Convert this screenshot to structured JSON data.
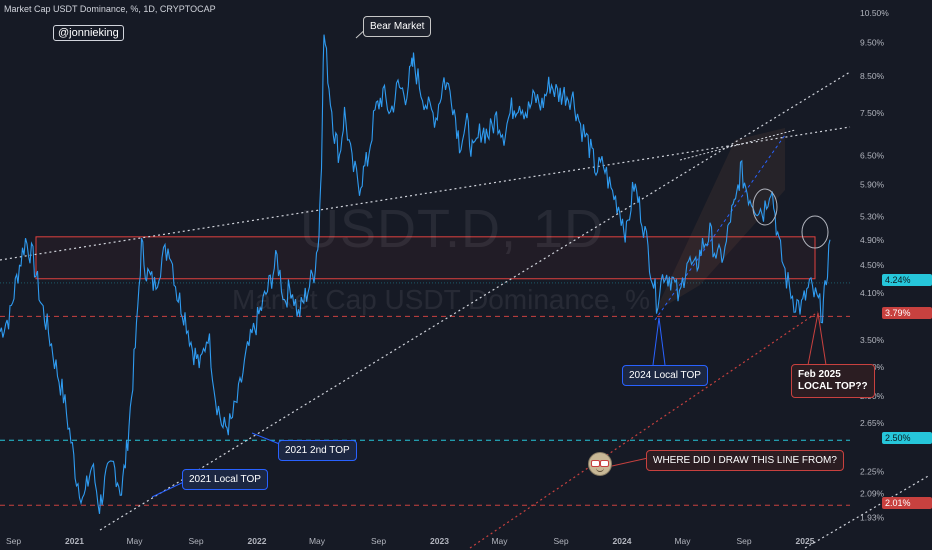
{
  "header": {
    "title": "Market Cap USDT Dominance, %, 1D, CRYPTOCAP",
    "handle": "@jonnieking"
  },
  "watermark": {
    "symbol": "USDT.D, 1D",
    "name": "Market Cap USDT Dominance, %"
  },
  "colors": {
    "background": "#161a25",
    "price_line": "#2f9bf0",
    "zone_border": "#e0413f",
    "blue_callout": "#2962ff",
    "red_callout": "#c8413f",
    "current_tag": "#26c6da"
  },
  "chart_data": {
    "type": "line",
    "title": "Market Cap USDT Dominance, %, 1D, CRYPTOCAP",
    "y_scale": "log",
    "ylim": [
      1.85,
      10.6
    ],
    "xlim": [
      "2020-08-05",
      "2025-04-01"
    ],
    "y_ticks": [
      "10.50%",
      "9.50%",
      "8.50%",
      "7.50%",
      "6.50%",
      "5.90%",
      "5.30%",
      "4.90%",
      "4.50%",
      "4.10%",
      "3.50%",
      "3.20%",
      "2.90%",
      "2.65%",
      "2.25%",
      "2.09%",
      "1.93%"
    ],
    "x_ticks": [
      {
        "label": "Sep",
        "date": "2020-09-01"
      },
      {
        "label": "2021",
        "date": "2021-01-01"
      },
      {
        "label": "May",
        "date": "2021-05-01"
      },
      {
        "label": "Sep",
        "date": "2021-09-01"
      },
      {
        "label": "2022",
        "date": "2022-01-01"
      },
      {
        "label": "May",
        "date": "2022-05-01"
      },
      {
        "label": "Sep",
        "date": "2022-09-01"
      },
      {
        "label": "2023",
        "date": "2023-01-01"
      },
      {
        "label": "May",
        "date": "2023-05-01"
      },
      {
        "label": "Sep",
        "date": "2023-09-01"
      },
      {
        "label": "2024",
        "date": "2024-01-01"
      },
      {
        "label": "May",
        "date": "2024-05-01"
      },
      {
        "label": "Sep",
        "date": "2024-09-01"
      },
      {
        "label": "2025",
        "date": "2025-01-01"
      }
    ],
    "series": [
      {
        "x": [
          "2020-08-05",
          "2020-08-25",
          "2020-09-10",
          "2020-09-25",
          "2020-10-10",
          "2020-10-25",
          "2020-11-10",
          "2020-11-25",
          "2020-12-10",
          "2020-12-25",
          "2021-01-05",
          "2021-01-20",
          "2021-02-05",
          "2021-02-20",
          "2021-03-05",
          "2021-03-20",
          "2021-04-05",
          "2021-04-15",
          "2021-04-25",
          "2021-05-05",
          "2021-05-15",
          "2021-05-25",
          "2021-06-10",
          "2021-06-25",
          "2021-07-10",
          "2021-07-25",
          "2021-08-10",
          "2021-08-25",
          "2021-09-10",
          "2021-09-25",
          "2021-10-10",
          "2021-10-25",
          "2021-11-10",
          "2021-11-25",
          "2021-12-10",
          "2021-12-25",
          "2022-01-10",
          "2022-01-25",
          "2022-02-10",
          "2022-02-25",
          "2022-03-10",
          "2022-03-25",
          "2022-04-10",
          "2022-04-25",
          "2022-05-05",
          "2022-05-10",
          "2022-05-15",
          "2022-05-25",
          "2022-06-05",
          "2022-06-15",
          "2022-06-25",
          "2022-07-10",
          "2022-07-25",
          "2022-08-10",
          "2022-08-25",
          "2022-09-10",
          "2022-09-25",
          "2022-10-10",
          "2022-10-25",
          "2022-11-05",
          "2022-11-10",
          "2022-11-25",
          "2022-12-10",
          "2022-12-25",
          "2023-01-10",
          "2023-01-25",
          "2023-02-10",
          "2023-02-25",
          "2023-03-10",
          "2023-03-25",
          "2023-04-10",
          "2023-04-25",
          "2023-05-10",
          "2023-05-25",
          "2023-06-10",
          "2023-06-25",
          "2023-07-10",
          "2023-07-25",
          "2023-08-10",
          "2023-08-25",
          "2023-09-10",
          "2023-09-25",
          "2023-10-10",
          "2023-10-25",
          "2023-11-10",
          "2023-11-25",
          "2023-12-10",
          "2023-12-25",
          "2024-01-10",
          "2024-01-25",
          "2024-02-10",
          "2024-02-25",
          "2024-03-10",
          "2024-03-25",
          "2024-04-10",
          "2024-04-25",
          "2024-05-10",
          "2024-05-25",
          "2024-06-10",
          "2024-06-25",
          "2024-07-10",
          "2024-07-25",
          "2024-08-05",
          "2024-08-15",
          "2024-08-25",
          "2024-09-10",
          "2024-09-25",
          "2024-10-10",
          "2024-10-25",
          "2024-11-10",
          "2024-11-25",
          "2024-12-10",
          "2024-12-25",
          "2025-01-10",
          "2025-01-25",
          "2025-02-05",
          "2025-02-10",
          "2025-02-20"
        ],
        "y": [
          3.6,
          3.8,
          4.4,
          4.9,
          4.6,
          4.0,
          3.6,
          3.2,
          2.9,
          2.5,
          2.2,
          2.05,
          2.3,
          2.0,
          2.2,
          2.3,
          2.1,
          2.4,
          2.9,
          3.6,
          4.8,
          4.4,
          4.2,
          4.6,
          4.8,
          4.1,
          3.8,
          3.4,
          3.2,
          3.6,
          2.9,
          2.6,
          2.65,
          2.9,
          3.3,
          3.6,
          3.9,
          4.2,
          4.6,
          4.0,
          4.2,
          3.8,
          4.1,
          4.4,
          5.0,
          6.5,
          9.8,
          8.2,
          7.0,
          6.5,
          7.5,
          6.3,
          5.9,
          6.4,
          7.5,
          8.0,
          7.5,
          8.2,
          8.0,
          8.6,
          8.9,
          8.1,
          7.6,
          7.4,
          8.4,
          8.0,
          6.8,
          7.2,
          6.5,
          7.1,
          7.0,
          7.4,
          7.0,
          7.6,
          7.8,
          7.5,
          7.9,
          7.7,
          8.3,
          8.0,
          8.0,
          7.9,
          7.2,
          6.8,
          6.2,
          6.3,
          5.8,
          5.5,
          5.0,
          5.9,
          5.3,
          4.6,
          4.0,
          4.4,
          4.3,
          4.0,
          4.6,
          4.4,
          4.8,
          5.0,
          4.6,
          4.7,
          5.3,
          5.5,
          6.2,
          5.7,
          5.5,
          5.4,
          5.9,
          4.8,
          4.3,
          4.0,
          3.9,
          4.2,
          4.0,
          3.85,
          4.1,
          4.9
        ]
      }
    ],
    "horizontal_levels": [
      {
        "value": 3.79,
        "label": "3.79%",
        "color": "#c8413f"
      },
      {
        "value": 2.5,
        "label": "2.50%",
        "color": "#26c6da"
      },
      {
        "value": 2.01,
        "label": "2.01%",
        "color": "#c8413f"
      }
    ],
    "current_value": {
      "value": 4.24,
      "label": "4.24%"
    },
    "zone": {
      "low": 4.3,
      "high": 4.95
    },
    "annotations": [
      {
        "id": "bear",
        "text": "Bear Market"
      },
      {
        "id": "local2021",
        "text": "2021 Local TOP"
      },
      {
        "id": "second2021",
        "text": "2021 2nd TOP"
      },
      {
        "id": "local2024",
        "text": "2024 Local TOP"
      },
      {
        "id": "feb2025",
        "text": "Feb 2025\nLOCAL TOP??"
      },
      {
        "id": "where",
        "text": "WHERE DID I DRAW THIS LINE FROM?"
      }
    ]
  }
}
